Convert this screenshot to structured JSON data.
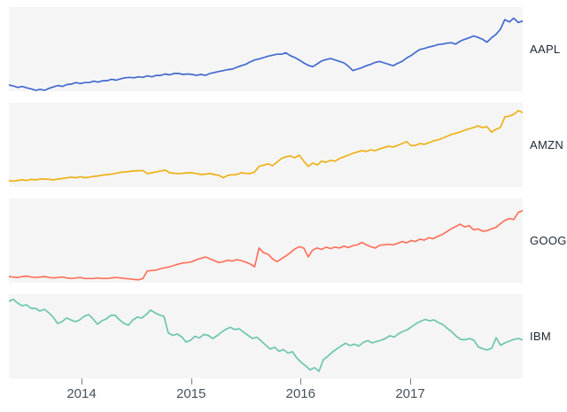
{
  "chart_data": {
    "type": "line",
    "layout": "faceted-small-multiples",
    "panel_background": "#f5f5f5",
    "grid": false,
    "x_domain": [
      2013.337,
      2018.027
    ],
    "x_axis": {
      "tick_values": [
        2014,
        2015,
        2016,
        2017
      ],
      "tick_labels": [
        "2014",
        "2015",
        "2016",
        "2017"
      ],
      "tick_mark_color": "#768089",
      "tick_label_color": "#46525c"
    },
    "y_definition": "price relative to value at start of period, per-panel scale",
    "series": [
      {
        "symbol": "AAPL",
        "color": "#4269d0",
        "y_domain": [
          0.85,
          2.6
        ],
        "values": [
          0.98,
          0.96,
          0.93,
          0.95,
          0.92,
          0.9,
          0.87,
          0.89,
          0.87,
          0.91,
          0.94,
          0.97,
          0.95,
          0.99,
          1.0,
          1.03,
          1.01,
          1.03,
          1.03,
          1.06,
          1.04,
          1.07,
          1.07,
          1.1,
          1.08,
          1.11,
          1.13,
          1.14,
          1.13,
          1.15,
          1.14,
          1.17,
          1.15,
          1.18,
          1.18,
          1.21,
          1.19,
          1.22,
          1.22,
          1.2,
          1.21,
          1.2,
          1.18,
          1.2,
          1.18,
          1.22,
          1.24,
          1.26,
          1.28,
          1.3,
          1.31,
          1.35,
          1.38,
          1.41,
          1.46,
          1.5,
          1.52,
          1.55,
          1.58,
          1.6,
          1.62,
          1.62,
          1.65,
          1.59,
          1.55,
          1.5,
          1.44,
          1.39,
          1.36,
          1.42,
          1.48,
          1.51,
          1.53,
          1.5,
          1.47,
          1.44,
          1.37,
          1.28,
          1.31,
          1.34,
          1.38,
          1.41,
          1.45,
          1.47,
          1.44,
          1.41,
          1.38,
          1.43,
          1.47,
          1.54,
          1.59,
          1.66,
          1.72,
          1.74,
          1.77,
          1.79,
          1.82,
          1.83,
          1.85,
          1.86,
          1.83,
          1.89,
          1.93,
          1.96,
          2.0,
          1.97,
          1.93,
          1.87,
          1.96,
          2.03,
          2.14,
          2.34,
          2.29,
          2.37,
          2.28,
          2.31
        ]
      },
      {
        "symbol": "AMZN",
        "color": "#efb118",
        "y_domain": [
          0.8,
          4.0
        ],
        "values": [
          1.04,
          1.02,
          1.05,
          1.07,
          1.05,
          1.09,
          1.07,
          1.1,
          1.1,
          1.09,
          1.07,
          1.1,
          1.12,
          1.15,
          1.17,
          1.15,
          1.19,
          1.15,
          1.17,
          1.2,
          1.22,
          1.25,
          1.27,
          1.29,
          1.32,
          1.36,
          1.37,
          1.39,
          1.41,
          1.42,
          1.42,
          1.31,
          1.34,
          1.37,
          1.41,
          1.44,
          1.34,
          1.32,
          1.31,
          1.32,
          1.34,
          1.34,
          1.31,
          1.27,
          1.29,
          1.31,
          1.27,
          1.24,
          1.15,
          1.24,
          1.26,
          1.27,
          1.34,
          1.32,
          1.31,
          1.37,
          1.58,
          1.63,
          1.68,
          1.61,
          1.74,
          1.88,
          1.95,
          1.98,
          1.91,
          2.01,
          1.78,
          1.58,
          1.71,
          1.64,
          1.78,
          1.74,
          1.81,
          1.78,
          1.88,
          1.95,
          2.01,
          2.08,
          2.13,
          2.18,
          2.15,
          2.21,
          2.18,
          2.25,
          2.3,
          2.35,
          2.32,
          2.38,
          2.45,
          2.52,
          2.37,
          2.38,
          2.45,
          2.42,
          2.48,
          2.55,
          2.59,
          2.65,
          2.72,
          2.79,
          2.84,
          2.89,
          2.96,
          3.01,
          3.06,
          3.12,
          3.06,
          3.09,
          2.89,
          2.99,
          3.06,
          3.46,
          3.49,
          3.56,
          3.7,
          3.63
        ]
      },
      {
        "symbol": "GOOG",
        "color": "#ff725c",
        "y_domain": [
          0.8,
          2.6
        ],
        "values": [
          0.93,
          0.92,
          0.91,
          0.93,
          0.94,
          0.92,
          0.91,
          0.92,
          0.93,
          0.91,
          0.9,
          0.91,
          0.92,
          0.9,
          0.89,
          0.9,
          0.91,
          0.89,
          0.89,
          0.89,
          0.9,
          0.89,
          0.89,
          0.9,
          0.91,
          0.9,
          0.89,
          0.88,
          0.87,
          0.86,
          0.89,
          1.05,
          1.06,
          1.07,
          1.1,
          1.12,
          1.14,
          1.17,
          1.2,
          1.22,
          1.23,
          1.25,
          1.29,
          1.32,
          1.35,
          1.31,
          1.27,
          1.23,
          1.25,
          1.28,
          1.26,
          1.29,
          1.27,
          1.24,
          1.2,
          1.14,
          1.54,
          1.44,
          1.41,
          1.31,
          1.25,
          1.31,
          1.37,
          1.44,
          1.52,
          1.57,
          1.54,
          1.35,
          1.5,
          1.54,
          1.51,
          1.56,
          1.53,
          1.56,
          1.54,
          1.58,
          1.55,
          1.59,
          1.61,
          1.66,
          1.61,
          1.57,
          1.54,
          1.6,
          1.61,
          1.62,
          1.61,
          1.64,
          1.68,
          1.65,
          1.7,
          1.68,
          1.73,
          1.71,
          1.76,
          1.74,
          1.79,
          1.83,
          1.89,
          1.95,
          2.0,
          2.05,
          1.99,
          2.02,
          1.93,
          1.95,
          1.9,
          1.91,
          1.95,
          1.98,
          2.06,
          2.13,
          2.17,
          2.15,
          2.3,
          2.34
        ]
      },
      {
        "symbol": "IBM",
        "color": "#6cc5b0",
        "y_domain": [
          0.6,
          1.08
        ],
        "values": [
          1.04,
          1.05,
          1.029,
          1.014,
          1.019,
          0.999,
          0.999,
          0.984,
          0.994,
          0.974,
          0.949,
          0.913,
          0.923,
          0.944,
          0.933,
          0.923,
          0.933,
          0.954,
          0.964,
          0.939,
          0.908,
          0.928,
          0.939,
          0.959,
          0.959,
          0.933,
          0.913,
          0.903,
          0.933,
          0.949,
          0.944,
          0.964,
          0.989,
          0.974,
          0.961,
          0.954,
          0.858,
          0.845,
          0.853,
          0.837,
          0.807,
          0.817,
          0.84,
          0.83,
          0.85,
          0.845,
          0.827,
          0.843,
          0.863,
          0.88,
          0.891,
          0.878,
          0.883,
          0.863,
          0.845,
          0.827,
          0.835,
          0.812,
          0.789,
          0.767,
          0.777,
          0.754,
          0.764,
          0.744,
          0.752,
          0.716,
          0.691,
          0.671,
          0.648,
          0.661,
          0.64,
          0.706,
          0.726,
          0.749,
          0.767,
          0.784,
          0.8,
          0.787,
          0.795,
          0.784,
          0.805,
          0.815,
          0.802,
          0.81,
          0.817,
          0.827,
          0.843,
          0.835,
          0.855,
          0.868,
          0.878,
          0.896,
          0.913,
          0.926,
          0.936,
          0.928,
          0.933,
          0.918,
          0.906,
          0.885,
          0.865,
          0.84,
          0.822,
          0.82,
          0.827,
          0.817,
          0.779,
          0.769,
          0.762,
          0.772,
          0.832,
          0.789,
          0.802,
          0.812,
          0.822,
          0.827,
          0.82
        ]
      }
    ]
  }
}
